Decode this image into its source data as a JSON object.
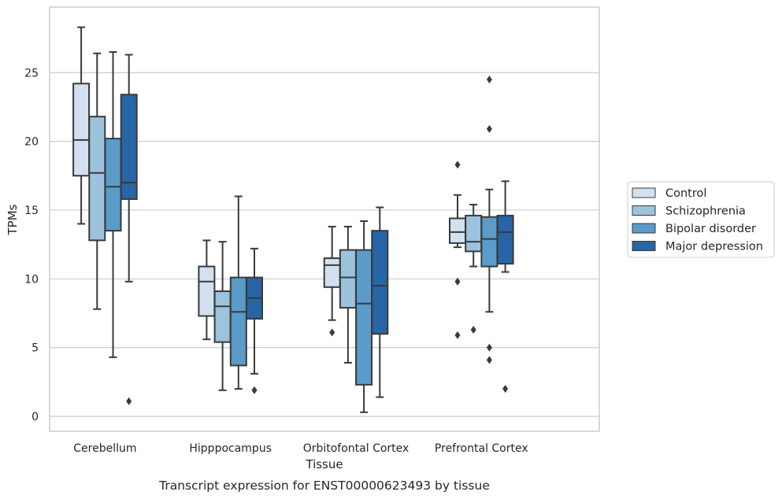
{
  "chart_data": {
    "type": "box",
    "title": "Transcript expression for ENST00000623493 by tissue",
    "xlabel": "Tissue",
    "ylabel": "TPMs",
    "ylim": [
      -1.1,
      29.7
    ],
    "yticks": [
      0,
      5,
      10,
      15,
      20,
      25
    ],
    "grid": true,
    "legend_position": "right",
    "categories": [
      "Cerebellum",
      "Hipppocampus",
      "Orbitofontal Cortex",
      "Prefrontal Cortex"
    ],
    "series": [
      {
        "name": "Control",
        "color": "#d1e1f0",
        "boxes": [
          {
            "whisker_low": 14.0,
            "q1": 17.5,
            "median": 20.1,
            "q3": 24.2,
            "whisker_high": 28.3,
            "outliers": []
          },
          {
            "whisker_low": 5.6,
            "q1": 7.3,
            "median": 9.8,
            "q3": 10.9,
            "whisker_high": 12.8,
            "outliers": []
          },
          {
            "whisker_low": 7.0,
            "q1": 9.4,
            "median": 11.0,
            "q3": 11.5,
            "whisker_high": 13.8,
            "outliers": [
              6.1
            ]
          },
          {
            "whisker_low": 12.3,
            "q1": 12.6,
            "median": 13.4,
            "q3": 14.4,
            "whisker_high": 16.1,
            "outliers": [
              18.3,
              9.8,
              5.9
            ]
          }
        ]
      },
      {
        "name": "Schizophrenia",
        "color": "#9cc3dd",
        "boxes": [
          {
            "whisker_low": 7.8,
            "q1": 12.8,
            "median": 17.7,
            "q3": 21.8,
            "whisker_high": 26.4,
            "outliers": []
          },
          {
            "whisker_low": 1.9,
            "q1": 5.4,
            "median": 8.0,
            "q3": 9.1,
            "whisker_high": 12.7,
            "outliers": []
          },
          {
            "whisker_low": 3.9,
            "q1": 7.9,
            "median": 10.1,
            "q3": 12.1,
            "whisker_high": 13.8,
            "outliers": []
          },
          {
            "whisker_low": 10.9,
            "q1": 12.0,
            "median": 12.7,
            "q3": 14.6,
            "whisker_high": 15.4,
            "outliers": [
              6.3
            ]
          }
        ]
      },
      {
        "name": "Bipolar disorder",
        "color": "#5a9bc8",
        "boxes": [
          {
            "whisker_low": 4.3,
            "q1": 13.5,
            "median": 16.7,
            "q3": 20.2,
            "whisker_high": 26.5,
            "outliers": []
          },
          {
            "whisker_low": 2.0,
            "q1": 3.7,
            "median": 7.6,
            "q3": 10.1,
            "whisker_high": 16.0,
            "outliers": []
          },
          {
            "whisker_low": 0.3,
            "q1": 2.3,
            "median": 8.2,
            "q3": 12.1,
            "whisker_high": 14.2,
            "outliers": []
          },
          {
            "whisker_low": 7.6,
            "q1": 10.9,
            "median": 12.9,
            "q3": 14.5,
            "whisker_high": 16.5,
            "outliers": [
              24.5,
              20.9,
              5.0,
              4.1
            ]
          }
        ]
      },
      {
        "name": "Major depression",
        "color": "#2765a5",
        "boxes": [
          {
            "whisker_low": 9.8,
            "q1": 15.8,
            "median": 17.0,
            "q3": 23.4,
            "whisker_high": 26.3,
            "outliers": [
              1.1
            ]
          },
          {
            "whisker_low": 3.1,
            "q1": 7.1,
            "median": 8.6,
            "q3": 10.1,
            "whisker_high": 12.2,
            "outliers": [
              1.9
            ]
          },
          {
            "whisker_low": 1.4,
            "q1": 6.0,
            "median": 9.5,
            "q3": 13.5,
            "whisker_high": 15.2,
            "outliers": []
          },
          {
            "whisker_low": 10.5,
            "q1": 11.1,
            "median": 13.4,
            "q3": 14.6,
            "whisker_high": 17.1,
            "outliers": [
              2.0
            ]
          }
        ]
      }
    ]
  }
}
